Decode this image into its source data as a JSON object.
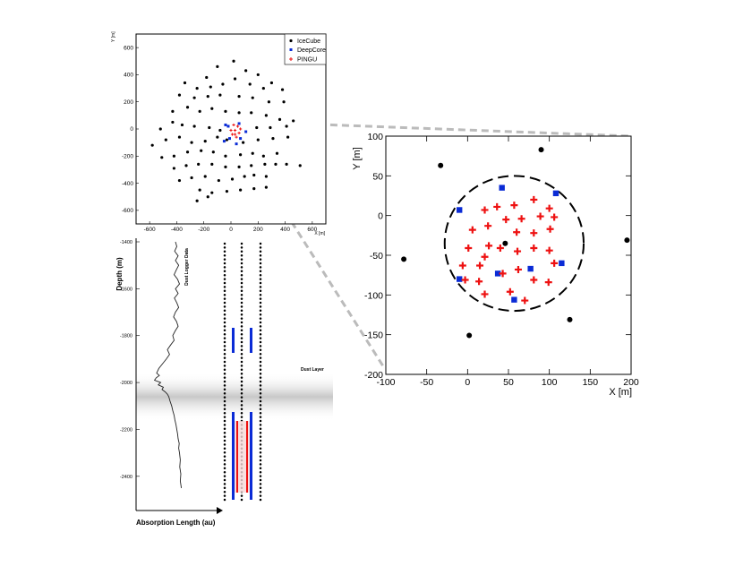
{
  "colors": {
    "icecube": "#000000",
    "deepcore": "#0a2bd6",
    "pingu": "#ee1111",
    "zoom_guide": "#bbbbbb",
    "dust_band": "#9a9a9a"
  },
  "chart_data": [
    {
      "type": "scatter",
      "panel": "top-view",
      "title": "",
      "xlabel": "X [m]",
      "ylabel": "Y [m]",
      "xlim": [
        -700,
        700
      ],
      "ylim": [
        -700,
        700
      ],
      "xticks": [
        "-600",
        "-400",
        "-200",
        "0",
        "200",
        "400",
        "600"
      ],
      "yticks": [
        "600",
        "400",
        "200",
        "0",
        "-200",
        "-400",
        "-600"
      ],
      "legend": {
        "position": "top-right",
        "entries": [
          "IceCube",
          "DeepCore",
          "PINGU"
        ]
      },
      "series": [
        {
          "name": "IceCube",
          "marker": "circle",
          "points": [
            [
              -180,
              380
            ],
            [
              -100,
              460
            ],
            [
              20,
              500
            ],
            [
              110,
              430
            ],
            [
              200,
              400
            ],
            [
              300,
              340
            ],
            [
              -340,
              340
            ],
            [
              -250,
              300
            ],
            [
              -150,
              310
            ],
            [
              -60,
              330
            ],
            [
              30,
              370
            ],
            [
              140,
              330
            ],
            [
              240,
              300
            ],
            [
              380,
              290
            ],
            [
              -380,
              250
            ],
            [
              -270,
              230
            ],
            [
              -170,
              240
            ],
            [
              -80,
              250
            ],
            [
              60,
              240
            ],
            [
              160,
              230
            ],
            [
              280,
              200
            ],
            [
              390,
              200
            ],
            [
              -320,
              160
            ],
            [
              -230,
              130
            ],
            [
              -140,
              150
            ],
            [
              -40,
              130
            ],
            [
              60,
              120
            ],
            [
              150,
              120
            ],
            [
              260,
              100
            ],
            [
              360,
              70
            ],
            [
              -430,
              130
            ],
            [
              -520,
              0
            ],
            [
              -430,
              50
            ],
            [
              -360,
              30
            ],
            [
              -270,
              20
            ],
            [
              -160,
              10
            ],
            [
              -80,
              -10
            ],
            [
              190,
              10
            ],
            [
              290,
              10
            ],
            [
              410,
              20
            ],
            [
              460,
              60
            ],
            [
              -580,
              -120
            ],
            [
              -480,
              -80
            ],
            [
              -380,
              -60
            ],
            [
              -290,
              -100
            ],
            [
              -190,
              -90
            ],
            [
              -100,
              -60
            ],
            [
              -30,
              -80
            ],
            [
              90,
              -100
            ],
            [
              200,
              -80
            ],
            [
              310,
              -70
            ],
            [
              420,
              -60
            ],
            [
              -510,
              -210
            ],
            [
              -420,
              -200
            ],
            [
              -320,
              -170
            ],
            [
              -220,
              -160
            ],
            [
              -130,
              -170
            ],
            [
              -40,
              -200
            ],
            [
              70,
              -190
            ],
            [
              160,
              -180
            ],
            [
              240,
              -200
            ],
            [
              340,
              -180
            ],
            [
              -420,
              -290
            ],
            [
              -330,
              -270
            ],
            [
              -240,
              -260
            ],
            [
              -140,
              -260
            ],
            [
              -40,
              -280
            ],
            [
              60,
              -280
            ],
            [
              150,
              -270
            ],
            [
              250,
              -260
            ],
            [
              330,
              -260
            ],
            [
              410,
              -260
            ],
            [
              510,
              -270
            ],
            [
              -380,
              -380
            ],
            [
              -290,
              -360
            ],
            [
              -190,
              -350
            ],
            [
              -90,
              -380
            ],
            [
              10,
              -370
            ],
            [
              100,
              -350
            ],
            [
              170,
              -340
            ],
            [
              260,
              -350
            ],
            [
              -230,
              -450
            ],
            [
              -140,
              -470
            ],
            [
              -30,
              -460
            ],
            [
              70,
              -450
            ],
            [
              170,
              -440
            ],
            [
              260,
              -430
            ],
            [
              -250,
              -530
            ],
            [
              -170,
              -500
            ]
          ]
        },
        {
          "name": "DeepCore",
          "marker": "square",
          "points": [
            [
              -40,
              30
            ],
            [
              60,
              40
            ],
            [
              -10,
              -70
            ],
            [
              70,
              -70
            ],
            [
              -50,
              -90
            ],
            [
              110,
              -20
            ],
            [
              40,
              -110
            ],
            [
              -20,
              20
            ]
          ]
        },
        {
          "name": "PINGU",
          "marker": "cross",
          "points": [
            [
              20,
              30
            ],
            [
              50,
              20
            ],
            [
              30,
              -10
            ],
            [
              60,
              -30
            ],
            [
              10,
              -40
            ],
            [
              40,
              -60
            ],
            [
              0,
              -10
            ],
            [
              70,
              0
            ],
            [
              30,
              -40
            ]
          ]
        }
      ]
    },
    {
      "type": "line",
      "panel": "dust-logger",
      "title": "",
      "xlabel": "Absorption Length (au)",
      "ylabel": "Depth (m)",
      "ylim": [
        1400,
        2500
      ],
      "yticks": [
        "-1400",
        "-1600",
        "-1800",
        "-2000",
        "-2200",
        "-2400"
      ],
      "x": [
        1.0,
        1.05,
        0.97,
        1.1,
        1.0,
        1.12,
        1.03,
        0.95,
        1.08,
        1.15,
        1.0,
        1.1,
        0.96,
        1.05,
        1.12,
        1.0,
        0.93,
        1.04,
        1.1,
        0.99,
        0.9,
        0.95,
        0.82,
        0.7,
        0.78,
        0.66,
        0.52,
        0.38,
        0.3,
        0.4,
        0.28,
        0.22,
        0.45,
        0.36,
        0.55,
        0.5,
        0.62,
        0.7,
        0.75,
        0.8,
        0.86,
        0.9,
        0.95,
        0.98,
        1.02,
        1.05,
        1.08,
        1.1,
        1.14,
        1.12,
        1.15,
        1.18,
        1.16,
        1.2,
        1.18,
        1.22
      ],
      "y": [
        1400,
        1420,
        1440,
        1460,
        1480,
        1500,
        1520,
        1540,
        1560,
        1580,
        1600,
        1620,
        1640,
        1660,
        1680,
        1700,
        1720,
        1740,
        1760,
        1780,
        1800,
        1820,
        1840,
        1860,
        1880,
        1900,
        1920,
        1940,
        1960,
        1970,
        1980,
        1990,
        2000,
        2010,
        2020,
        2030,
        2040,
        2050,
        2060,
        2080,
        2100,
        2120,
        2140,
        2160,
        2180,
        2200,
        2220,
        2240,
        2260,
        2280,
        2300,
        2330,
        2360,
        2390,
        2420,
        2450
      ],
      "annotations": [
        "Dust Logger Data",
        "Dust Layer"
      ]
    },
    {
      "type": "scatter",
      "panel": "zoomed-view",
      "title": "",
      "xlabel": "X [m]",
      "ylabel": "Y [m]",
      "xlim": [
        -100,
        200
      ],
      "ylim": [
        -200,
        100
      ],
      "xticks": [
        "-100",
        "-50",
        "0",
        "50",
        "100",
        "150",
        "200"
      ],
      "yticks": [
        "100",
        "50",
        "0",
        "-50",
        "-100",
        "-150",
        "-200"
      ],
      "circle": {
        "center": [
          57,
          -35
        ],
        "radius": 85,
        "style": "dashed"
      },
      "series": [
        {
          "name": "IceCube",
          "marker": "circle",
          "points": [
            [
              -33,
              63
            ],
            [
              90,
              83
            ],
            [
              195,
              -31
            ],
            [
              46,
              -35
            ],
            [
              -78,
              -55
            ],
            [
              125,
              -131
            ],
            [
              2,
              -151
            ]
          ]
        },
        {
          "name": "DeepCore",
          "marker": "square",
          "points": [
            [
              42,
              35
            ],
            [
              108,
              28
            ],
            [
              -10,
              7
            ],
            [
              115,
              -60
            ],
            [
              77,
              -67
            ],
            [
              37,
              -73
            ],
            [
              -10,
              -80
            ],
            [
              57,
              -106
            ]
          ]
        },
        {
          "name": "PINGU",
          "marker": "cross",
          "points": [
            [
              81,
              20
            ],
            [
              100,
              9
            ],
            [
              57,
              13
            ],
            [
              36,
              11
            ],
            [
              21,
              7
            ],
            [
              47,
              -5
            ],
            [
              66,
              -4
            ],
            [
              89,
              -1
            ],
            [
              106,
              -2
            ],
            [
              25,
              -13
            ],
            [
              6,
              -18
            ],
            [
              60,
              -21
            ],
            [
              81,
              -22
            ],
            [
              101,
              -17
            ],
            [
              26,
              -38
            ],
            [
              1,
              -41
            ],
            [
              40,
              -41
            ],
            [
              81,
              -41
            ],
            [
              100,
              -44
            ],
            [
              61,
              -45
            ],
            [
              21,
              -52
            ],
            [
              -6,
              -63
            ],
            [
              15,
              -63
            ],
            [
              62,
              -68
            ],
            [
              106,
              -60
            ],
            [
              43,
              -73
            ],
            [
              -3,
              -81
            ],
            [
              81,
              -81
            ],
            [
              14,
              -83
            ],
            [
              99,
              -84
            ],
            [
              21,
              -99
            ],
            [
              52,
              -96
            ],
            [
              70,
              -107
            ]
          ]
        }
      ]
    }
  ]
}
